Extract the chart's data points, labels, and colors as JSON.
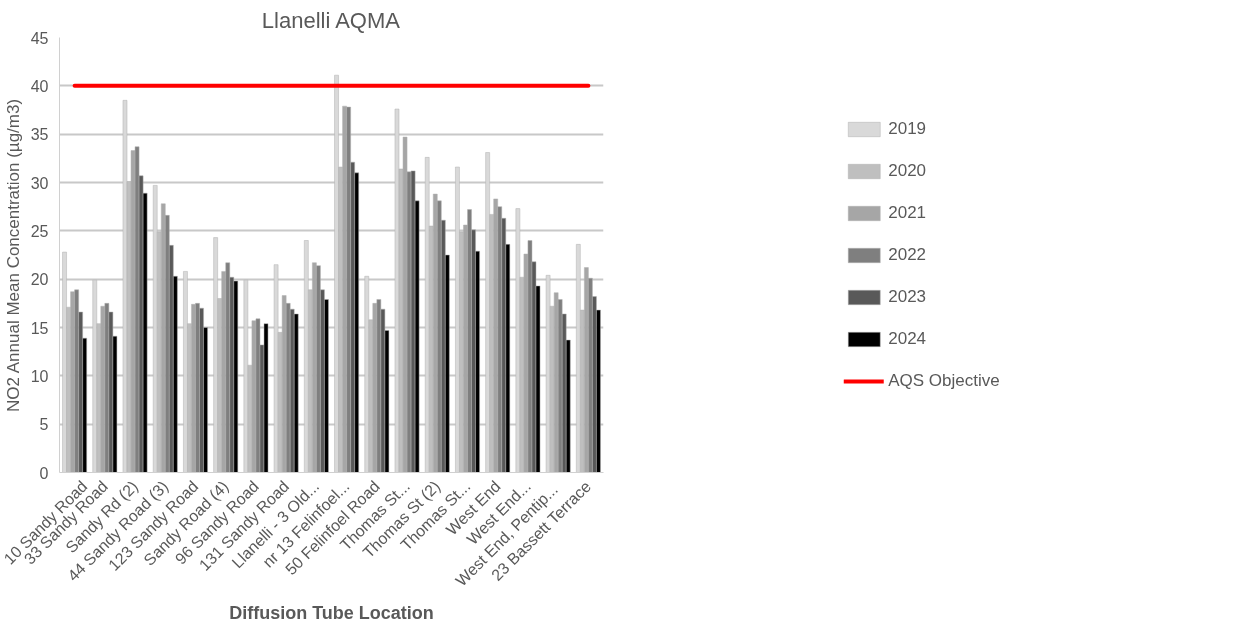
{
  "chart_data": {
    "type": "bar",
    "title": "Llanelli AQMA",
    "xlabel": "Diffusion Tube Location",
    "ylabel": "NO2 Annual Mean Concentration (µg/m3)",
    "categories": [
      "10 Sandy Road",
      "33 Sandy Road",
      "Sandy Rd (2)",
      "44 Sandy Road (3)",
      "123 Sandy Road",
      "Sandy Road (4)",
      "96 Sandy Road",
      "131 Sandy Road",
      "Llanelli - 3 Old...",
      "nr 13 Felinfoel...",
      "50 Felinfoel Road",
      "Thomas St...",
      "Thomas St (2)",
      "Thomas St...",
      "West End",
      "West End...",
      "West End,  Pentip...",
      "23 Bassett Terrace"
    ],
    "series": [
      {
        "name": "2019",
        "color": "#d9d9d9",
        "values": [
          22.8,
          19.9,
          38.5,
          29.7,
          20.8,
          24.3,
          19.9,
          21.5,
          24.0,
          41.1,
          20.3,
          37.6,
          32.6,
          31.6,
          33.1,
          27.3,
          20.4,
          23.6
        ]
      },
      {
        "name": "2020",
        "color": "#bfbfbf",
        "values": [
          17.1,
          15.4,
          30.1,
          24.9,
          15.4,
          18.0,
          11.1,
          14.5,
          18.9,
          31.6,
          15.8,
          31.4,
          25.5,
          24.9,
          26.7,
          20.2,
          17.2,
          16.8
        ]
      },
      {
        "name": "2021",
        "color": "#a6a6a6",
        "values": [
          18.7,
          17.2,
          33.3,
          27.8,
          17.4,
          20.8,
          15.7,
          18.3,
          21.7,
          37.9,
          17.5,
          34.7,
          28.8,
          25.6,
          28.3,
          22.6,
          18.6,
          21.2
        ]
      },
      {
        "name": "2022",
        "color": "#7f7f7f",
        "values": [
          18.9,
          17.5,
          33.7,
          26.6,
          17.5,
          21.7,
          15.9,
          17.5,
          21.4,
          37.8,
          17.9,
          31.1,
          28.1,
          27.2,
          27.5,
          24.0,
          17.9,
          20.1
        ]
      },
      {
        "name": "2023",
        "color": "#595959",
        "values": [
          16.6,
          16.6,
          30.7,
          23.5,
          17.0,
          20.2,
          13.2,
          16.9,
          18.9,
          32.1,
          16.9,
          31.2,
          26.1,
          25.1,
          26.3,
          21.8,
          16.4,
          18.2
        ]
      },
      {
        "name": "2024",
        "color": "#000000",
        "values": [
          13.9,
          14.1,
          28.9,
          20.3,
          15.0,
          19.8,
          15.4,
          16.4,
          17.9,
          31.0,
          14.7,
          28.1,
          22.5,
          22.9,
          23.6,
          19.3,
          13.7,
          16.8
        ]
      },
      {
        "name": "AQS Objective",
        "type": "line",
        "color": "#ff0000",
        "values": [
          40,
          40,
          40,
          40,
          40,
          40,
          40,
          40,
          40,
          40,
          40,
          40,
          40,
          40,
          40,
          40,
          40,
          40
        ]
      }
    ],
    "ylim": [
      0,
      45
    ],
    "yticks": [
      0,
      5,
      10,
      15,
      20,
      25,
      30,
      35,
      40,
      45
    ],
    "grid": "y",
    "legend": "right"
  }
}
